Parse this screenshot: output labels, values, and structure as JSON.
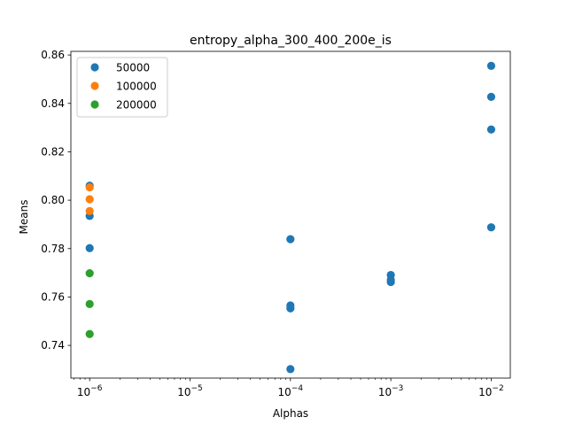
{
  "chart_data": {
    "type": "scatter",
    "title": "entropy_alpha_300_400_200e_is",
    "xlabel": "Alphas",
    "ylabel": "Means",
    "xscale": "log",
    "xlim": [
      6.5e-07,
      0.0155
    ],
    "ylim": [
      0.7265,
      0.8615
    ],
    "x_ticks": [
      {
        "value": 1e-06,
        "base": "10",
        "exp": "−6"
      },
      {
        "value": 1e-05,
        "base": "10",
        "exp": "−5"
      },
      {
        "value": 0.0001,
        "base": "10",
        "exp": "−4"
      },
      {
        "value": 0.001,
        "base": "10",
        "exp": "−3"
      },
      {
        "value": 0.01,
        "base": "10",
        "exp": "−2"
      }
    ],
    "y_ticks": [
      {
        "value": 0.74,
        "label": "0.74"
      },
      {
        "value": 0.76,
        "label": "0.76"
      },
      {
        "value": 0.78,
        "label": "0.78"
      },
      {
        "value": 0.8,
        "label": "0.80"
      },
      {
        "value": 0.82,
        "label": "0.82"
      },
      {
        "value": 0.84,
        "label": "0.84"
      },
      {
        "value": 0.86,
        "label": "0.86"
      }
    ],
    "grid": false,
    "legend_position": "top-left",
    "series": [
      {
        "name": "50000",
        "color": "#1f77b4",
        "points": [
          {
            "x": 1e-06,
            "y": 0.806
          },
          {
            "x": 1e-06,
            "y": 0.7935
          },
          {
            "x": 1e-06,
            "y": 0.7802
          },
          {
            "x": 0.0001,
            "y": 0.7839
          },
          {
            "x": 0.0001,
            "y": 0.7565
          },
          {
            "x": 0.0001,
            "y": 0.7553
          },
          {
            "x": 0.0001,
            "y": 0.7302
          },
          {
            "x": 0.001,
            "y": 0.7691
          },
          {
            "x": 0.001,
            "y": 0.7671
          },
          {
            "x": 0.001,
            "y": 0.7662
          },
          {
            "x": 0.01,
            "y": 0.8555
          },
          {
            "x": 0.01,
            "y": 0.8427
          },
          {
            "x": 0.01,
            "y": 0.8292
          },
          {
            "x": 0.01,
            "y": 0.7888
          }
        ]
      },
      {
        "name": "100000",
        "color": "#ff7f0e",
        "points": [
          {
            "x": 1e-06,
            "y": 0.8053
          },
          {
            "x": 1e-06,
            "y": 0.8004
          },
          {
            "x": 1e-06,
            "y": 0.7955
          }
        ]
      },
      {
        "name": "200000",
        "color": "#2ca02c",
        "points": [
          {
            "x": 1e-06,
            "y": 0.7698
          },
          {
            "x": 1e-06,
            "y": 0.7571
          },
          {
            "x": 1e-06,
            "y": 0.7447
          }
        ]
      }
    ]
  }
}
